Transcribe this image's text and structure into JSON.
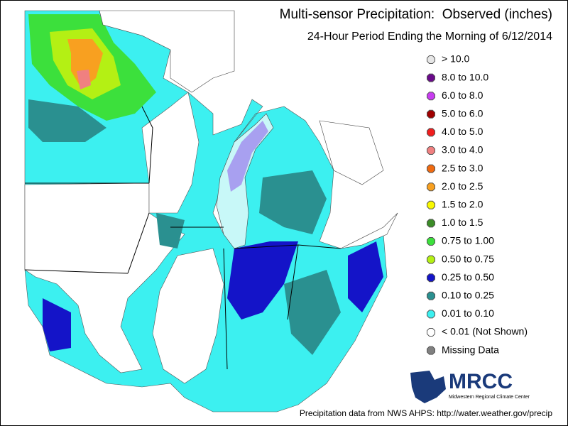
{
  "title": "Multi-sensor Precipitation:  Observed (inches)",
  "subtitle": "24-Hour Period Ending the Morning of 6/12/2014",
  "legend": [
    {
      "label": "> 10.0",
      "color": "#e6e6e6"
    },
    {
      "label": "8.0 to 10.0",
      "color": "#6a0a8a"
    },
    {
      "label": "6.0 to 8.0",
      "color": "#c83cf0"
    },
    {
      "label": "5.0 to 6.0",
      "color": "#a00000"
    },
    {
      "label": "4.0 to 5.0",
      "color": "#f01e1e"
    },
    {
      "label": "3.0 to 4.0",
      "color": "#f08080"
    },
    {
      "label": "2.5 to 3.0",
      "color": "#f06a10"
    },
    {
      "label": "2.0 to 2.5",
      "color": "#f8a020"
    },
    {
      "label": "1.5 to 2.0",
      "color": "#f8f800"
    },
    {
      "label": "1.0 to 1.5",
      "color": "#3c8c28"
    },
    {
      "label": "0.75 to 1.00",
      "color": "#3ce03c"
    },
    {
      "label": "0.50 to 0.75",
      "color": "#b4f014"
    },
    {
      "label": "0.25 to 0.50",
      "color": "#1414c8"
    },
    {
      "label": "0.10 to 0.25",
      "color": "#2a9090"
    },
    {
      "label": "0.01 to 0.10",
      "color": "#3cf0f0"
    },
    {
      "label": "< 0.01 (Not Shown)",
      "color": "#ffffff"
    },
    {
      "label": "Missing Data",
      "color": "#808080"
    }
  ],
  "logo": {
    "name": "MRCC",
    "full_name": "Midwestern Regional Climate Center"
  },
  "source": "Precipitation data from NWS AHPS: http://water.weather.gov/precip"
}
